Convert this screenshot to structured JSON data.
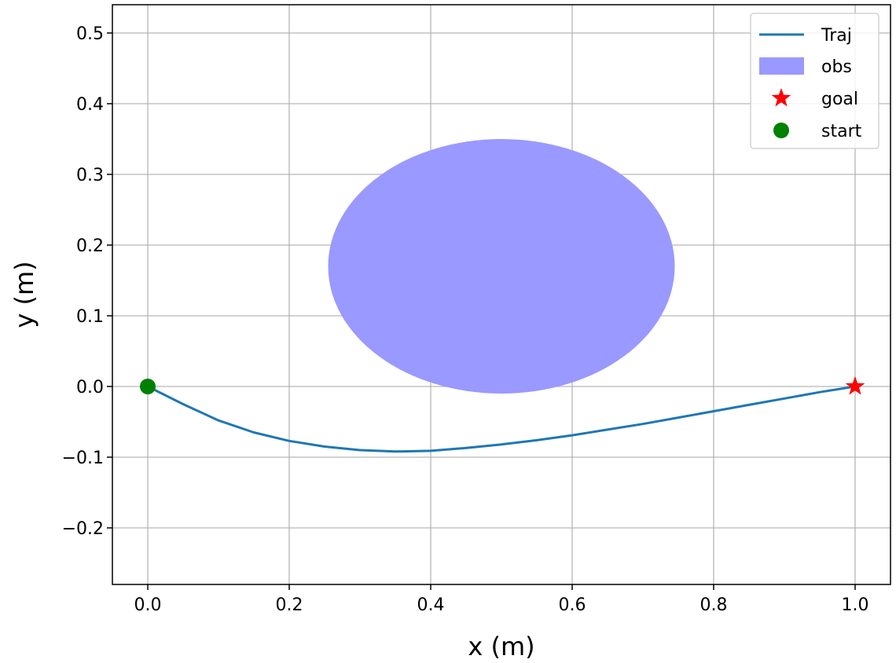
{
  "chart_data": {
    "type": "line",
    "title": "",
    "xlabel": "x (m)",
    "ylabel": "y (m)",
    "xlim": [
      -0.05,
      1.05
    ],
    "ylim": [
      -0.28,
      0.54
    ],
    "xticks": [
      0.0,
      0.2,
      0.4,
      0.6,
      0.8,
      1.0
    ],
    "xtick_labels": [
      "0.0",
      "0.2",
      "0.4",
      "0.6",
      "0.8",
      "1.0"
    ],
    "yticks": [
      -0.2,
      -0.1,
      0.0,
      0.1,
      0.2,
      0.3,
      0.4,
      0.5
    ],
    "ytick_labels": [
      "−0.2",
      "−0.1",
      "0.0",
      "0.1",
      "0.2",
      "0.3",
      "0.4",
      "0.5"
    ],
    "grid": true,
    "legend_position": "top-right",
    "series": [
      {
        "name": "Traj",
        "kind": "line",
        "color": "#1f77b4",
        "x": [
          0.0,
          0.05,
          0.1,
          0.15,
          0.2,
          0.25,
          0.3,
          0.35,
          0.4,
          0.45,
          0.5,
          0.55,
          0.6,
          0.65,
          0.7,
          0.75,
          0.8,
          0.85,
          0.9,
          0.95,
          1.0
        ],
        "y": [
          0.0,
          -0.025,
          -0.048,
          -0.065,
          -0.077,
          -0.085,
          -0.09,
          -0.092,
          -0.091,
          -0.087,
          -0.082,
          -0.076,
          -0.069,
          -0.061,
          -0.053,
          -0.044,
          -0.035,
          -0.026,
          -0.017,
          -0.008,
          0.0
        ]
      },
      {
        "name": "obs",
        "kind": "ellipse",
        "color": "#9999ff",
        "center": [
          0.5,
          0.17
        ],
        "radius_x": 0.245,
        "radius_y": 0.18
      },
      {
        "name": "goal",
        "kind": "marker",
        "marker": "star",
        "color": "#ff0000",
        "x": [
          1.0
        ],
        "y": [
          0.0
        ]
      },
      {
        "name": "start",
        "kind": "marker",
        "marker": "circle",
        "color": "#008000",
        "x": [
          0.0
        ],
        "y": [
          0.0
        ]
      }
    ]
  }
}
